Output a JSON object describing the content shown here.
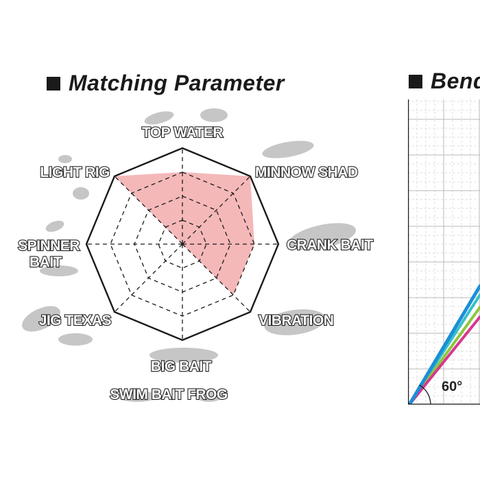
{
  "matching": {
    "title": "Matching Parameter"
  },
  "bend": {
    "title": "Bend",
    "angle_label": "60°"
  },
  "chart_data": [
    {
      "type": "radar",
      "title": "Matching Parameter",
      "axes": [
        "TOP WATER",
        "MINNOW SHAD",
        "CRANK BAIT",
        "VIBRATION",
        "BIG BAIT",
        "JIG TEXAS",
        "SPINNER BAIT",
        "LIGHT RIG"
      ],
      "axis_label_lines": [
        [
          "TOP WATER"
        ],
        [
          "MINNOW SHAD"
        ],
        [
          "CRANK BAIT"
        ],
        [
          "VIBRATION"
        ],
        [
          "BIG BAIT"
        ],
        [
          "JIG TEXAS"
        ],
        [
          "SPINNER",
          "BAIT"
        ],
        [
          "LIGHT RIG"
        ]
      ],
      "extra_labels": [
        "SWIM BAIT FROG"
      ],
      "levels": 4,
      "max": 4,
      "values": [
        3,
        4,
        3,
        3,
        0,
        0,
        0,
        4
      ],
      "fill_color": "#f4b8b8",
      "outline_color": "#1a1a1a",
      "grid_style": "dashed"
    },
    {
      "type": "line",
      "title": "Bend",
      "grid": true,
      "angle_label": "60°",
      "series_colors": [
        "#1a8fd8",
        "#36c0c8",
        "#8dc63f",
        "#d8368f"
      ]
    }
  ]
}
